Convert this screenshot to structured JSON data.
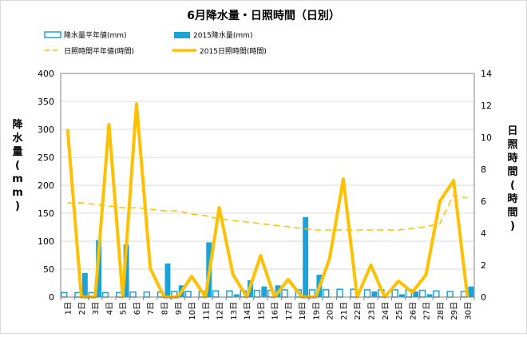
{
  "chart_data": {
    "type": "bar+line",
    "title": "6月降水量・日照時間（日別）",
    "categories": [
      "1日",
      "2日",
      "3日",
      "4日",
      "5日",
      "6日",
      "7日",
      "8日",
      "9日",
      "10日",
      "11日",
      "12日",
      "13日",
      "14日",
      "15日",
      "16日",
      "17日",
      "18日",
      "19日",
      "20日",
      "21日",
      "22日",
      "23日",
      "24日",
      "25日",
      "26日",
      "27日",
      "28日",
      "29日",
      "30日"
    ],
    "ylabel_left": "降水量(mm)",
    "ylabel_right": "日照時間(時間)",
    "ylim_left": [
      0,
      400
    ],
    "ylim_right": [
      0,
      14
    ],
    "yticks_left": [
      0,
      50,
      100,
      150,
      200,
      250,
      300,
      350,
      400
    ],
    "yticks_right": [
      0,
      2,
      4,
      6,
      8,
      10,
      12,
      14
    ],
    "legend_position": "top",
    "series": [
      {
        "name": "降水量平年値(mm)",
        "kind": "bar",
        "axis": "left",
        "color": "#1aa3d9",
        "style": "outline",
        "values": [
          8,
          8,
          8,
          8,
          8,
          9,
          9,
          9,
          10,
          10,
          10,
          11,
          11,
          11,
          12,
          12,
          13,
          13,
          13,
          13,
          14,
          14,
          13,
          13,
          13,
          13,
          12,
          11,
          10,
          10
        ]
      },
      {
        "name": "2015降水量(mm)",
        "kind": "bar",
        "axis": "left",
        "color": "#1aa3d9",
        "style": "solid",
        "values": [
          0,
          43,
          102,
          0,
          94,
          0,
          0,
          60,
          21,
          0,
          98,
          0,
          5,
          30,
          19,
          21,
          0,
          143,
          40,
          0,
          0,
          0,
          10,
          0,
          5,
          10,
          5,
          0,
          0,
          19
        ]
      },
      {
        "name": "日照時間平年値(時間)",
        "kind": "line",
        "axis": "right",
        "color": "#ffc000",
        "style": "dashed",
        "values": [
          5.9,
          5.9,
          5.8,
          5.7,
          5.6,
          5.6,
          5.5,
          5.4,
          5.4,
          5.2,
          5.1,
          4.9,
          4.8,
          4.7,
          4.6,
          4.5,
          4.4,
          4.3,
          4.2,
          4.2,
          4.2,
          4.2,
          4.2,
          4.2,
          4.2,
          4.3,
          4.4,
          4.6,
          6.4,
          6.2
        ]
      },
      {
        "name": "2015日照時間(時間)",
        "kind": "line",
        "axis": "right",
        "color": "#ffc000",
        "style": "solid",
        "values": [
          10.5,
          0,
          0,
          10.8,
          0,
          12.1,
          1.8,
          0,
          0,
          1.3,
          0,
          5.6,
          1.4,
          0,
          2.6,
          0,
          1.1,
          0,
          0,
          2.4,
          7.4,
          0,
          2.0,
          0,
          1.0,
          0.3,
          1.4,
          6.0,
          7.3,
          0
        ]
      }
    ]
  }
}
